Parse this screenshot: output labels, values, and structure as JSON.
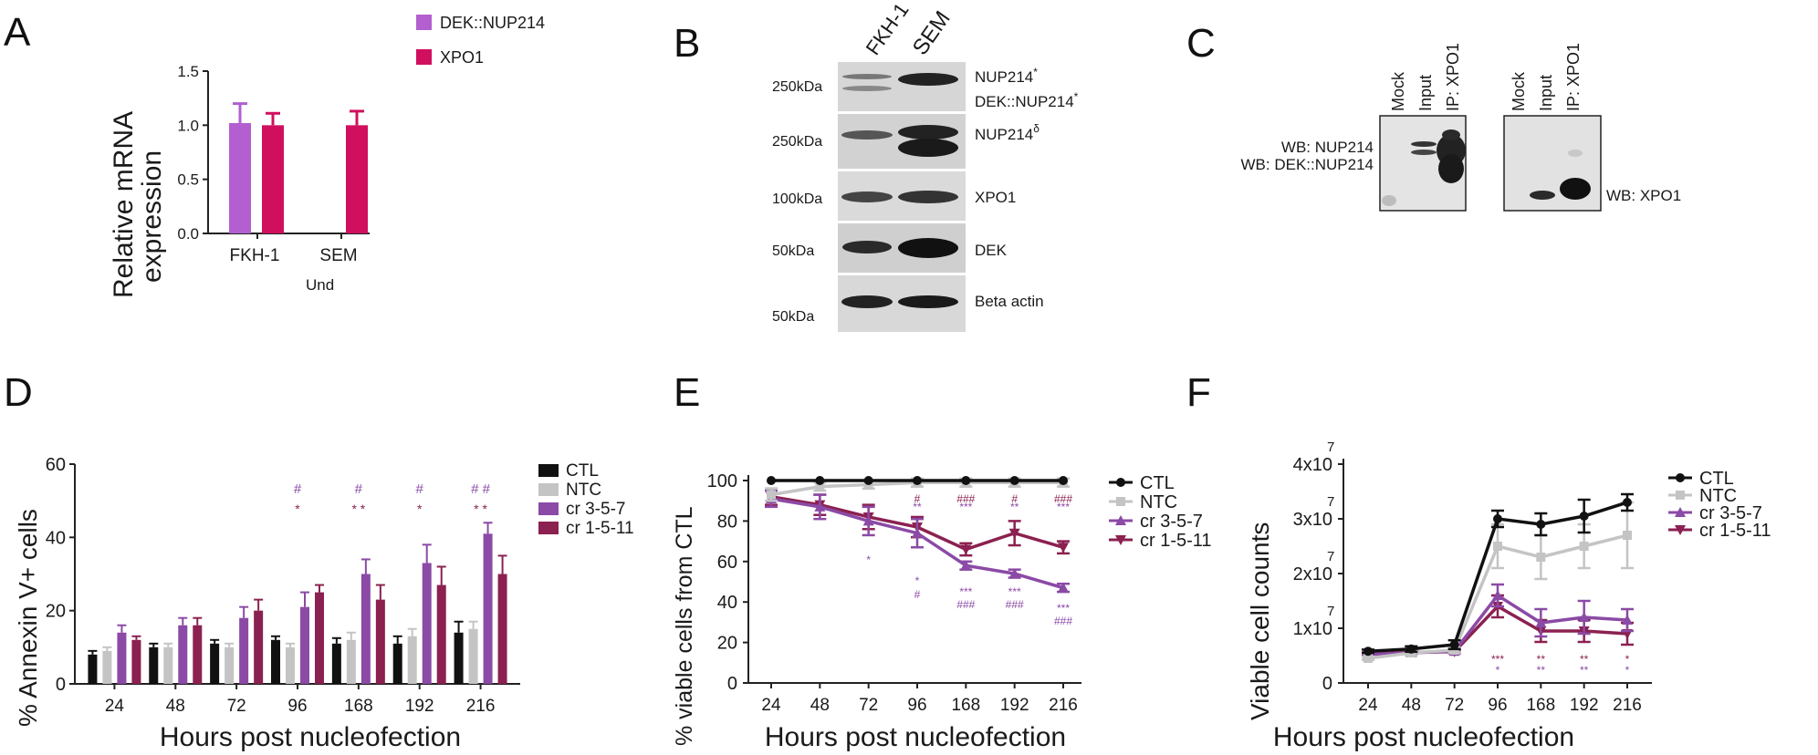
{
  "panels": {
    "A": {
      "letter": "A"
    },
    "B": {
      "letter": "B"
    },
    "C": {
      "letter": "C"
    },
    "D": {
      "letter": "D"
    },
    "E": {
      "letter": "E"
    },
    "F": {
      "letter": "F"
    }
  },
  "blot_B": {
    "lanes": [
      "FKH-1",
      "SEM"
    ],
    "rows": [
      {
        "size": "250kDa",
        "labels": [
          "NUP214",
          "DEK::NUP214"
        ],
        "sup": [
          "*",
          "*"
        ]
      },
      {
        "size": "250kDa",
        "labels": [
          "NUP214"
        ],
        "sup": [
          "δ"
        ]
      },
      {
        "size": "100kDa",
        "labels": [
          "XPO1"
        ]
      },
      {
        "size": "50kDa",
        "labels": [
          "DEK"
        ]
      },
      {
        "size": "50kDa",
        "labels": [
          "Beta actin"
        ]
      }
    ]
  },
  "blot_C": {
    "lanes_left": [
      "Mock",
      "Input",
      "IP: XPO1"
    ],
    "lanes_right": [
      "Mock",
      "Input",
      "IP: XPO1"
    ],
    "left_labels": [
      "WB: NUP214",
      "WB: DEK::NUP214"
    ],
    "right_label": "WB: XPO1"
  },
  "chart_data": [
    {
      "id": "A",
      "type": "bar",
      "ylabel": "Relative mRNA expression",
      "ylabel_lines": [
        "Relative mRNA",
        "expression"
      ],
      "categories": [
        "FKH-1",
        "SEM"
      ],
      "ylim": [
        0,
        1.5
      ],
      "yticks": [
        "0.0",
        "0.5",
        "1.0",
        "1.5"
      ],
      "series": [
        {
          "name": "DEK::NUP214",
          "color": "#b35fd0",
          "values": [
            1.02,
            0
          ],
          "errors": [
            0.18,
            0
          ]
        },
        {
          "name": "XPO1",
          "color": "#d0105e",
          "values": [
            1.0,
            1.0
          ],
          "errors": [
            0.11,
            0.13
          ]
        }
      ],
      "annotations": [
        {
          "category": "SEM",
          "text": "Und"
        }
      ]
    },
    {
      "id": "D",
      "type": "bar",
      "ylabel": "% Annexin V+ cells",
      "xlabel": "Hours post nucleofection",
      "categories": [
        "24",
        "48",
        "72",
        "96",
        "168",
        "192",
        "216"
      ],
      "ylim": [
        0,
        60
      ],
      "yticks": [
        "0",
        "20",
        "40",
        "60"
      ],
      "series": [
        {
          "name": "CTL",
          "color": "#111111",
          "values": [
            8,
            10,
            11,
            12,
            11,
            11,
            14
          ],
          "errors": [
            1,
            1,
            1,
            1,
            1.5,
            2,
            3
          ]
        },
        {
          "name": "NTC",
          "color": "#c4c4c4",
          "values": [
            9,
            10,
            10,
            10,
            12,
            13,
            15
          ],
          "errors": [
            1,
            1,
            1,
            1,
            2,
            2,
            2
          ]
        },
        {
          "name": "cr 3-5-7",
          "color": "#8b4aa6",
          "values": [
            14,
            16,
            18,
            21,
            30,
            33,
            41
          ],
          "errors": [
            2,
            2,
            3,
            4,
            4,
            5,
            3
          ]
        },
        {
          "name": "cr 1-5-11",
          "color": "#8b2150",
          "values": [
            12,
            16,
            20,
            25,
            23,
            27,
            30
          ],
          "errors": [
            1,
            2,
            3,
            2,
            4,
            5,
            5
          ]
        }
      ],
      "annotations": [
        {
          "category": "96",
          "lines": [
            "#",
            "*"
          ]
        },
        {
          "category": "168",
          "lines": [
            "#",
            "* *"
          ]
        },
        {
          "category": "192",
          "lines": [
            "#",
            "*"
          ]
        },
        {
          "category": "216",
          "lines": [
            "# #",
            "* *"
          ]
        }
      ]
    },
    {
      "id": "E",
      "type": "line",
      "ylabel": "% viable cells from CTL",
      "xlabel": "Hours post nucleofection",
      "categories": [
        "24",
        "48",
        "72",
        "96",
        "168",
        "192",
        "216"
      ],
      "ylim": [
        0,
        100
      ],
      "yticks": [
        "0",
        "20",
        "40",
        "60",
        "80",
        "100"
      ],
      "series": [
        {
          "name": "CTL",
          "color": "#111111",
          "marker": "circle",
          "values": [
            100,
            100,
            100,
            100,
            100,
            100,
            100
          ],
          "errors": [
            0,
            0,
            0,
            0,
            0,
            0,
            0
          ]
        },
        {
          "name": "NTC",
          "color": "#c4c4c4",
          "marker": "square",
          "values": [
            93,
            97,
            98,
            99,
            99,
            99,
            99
          ],
          "errors": [
            3,
            2,
            2,
            2,
            2,
            2,
            2
          ]
        },
        {
          "name": "cr 3-5-7",
          "color": "#8b4aa6",
          "marker": "triangle-up",
          "values": [
            91,
            87,
            80,
            74,
            58,
            54,
            47
          ],
          "errors": [
            4,
            6,
            7,
            7,
            2,
            2,
            2
          ]
        },
        {
          "name": "cr 1-5-11",
          "color": "#8b2150",
          "marker": "triangle-down",
          "values": [
            92,
            88,
            82,
            77,
            66,
            74,
            67
          ],
          "errors": [
            4,
            5,
            6,
            5,
            3,
            6,
            3
          ]
        }
      ],
      "annotations_top": [
        {
          "category": "96",
          "lines": [
            "#",
            "**"
          ]
        },
        {
          "category": "168",
          "lines": [
            "###",
            "***"
          ]
        },
        {
          "category": "192",
          "lines": [
            "#",
            "**"
          ]
        },
        {
          "category": "216",
          "lines": [
            "###",
            "***"
          ]
        }
      ],
      "annotations_bottom": [
        {
          "category": "72",
          "lines": [
            "*"
          ]
        },
        {
          "category": "96",
          "lines": [
            "*",
            "#"
          ]
        },
        {
          "category": "168",
          "lines": [
            "***",
            "###"
          ]
        },
        {
          "category": "192",
          "lines": [
            "***",
            "###"
          ]
        },
        {
          "category": "216",
          "lines": [
            "***",
            "###"
          ]
        }
      ]
    },
    {
      "id": "F",
      "type": "line",
      "ylabel": "Viable cell counts",
      "xlabel": "Hours post nucleofection",
      "categories": [
        "24",
        "48",
        "72",
        "96",
        "168",
        "192",
        "216"
      ],
      "ylim": [
        0,
        40000000
      ],
      "yticks": [
        0,
        10000000,
        20000000,
        30000000,
        40000000
      ],
      "ytick_labels": [
        "0",
        "1x10",
        "2x10",
        "3x10",
        "4x10"
      ],
      "ytick_exp": "7",
      "series": [
        {
          "name": "CTL",
          "color": "#111111",
          "marker": "circle",
          "values": [
            5800000,
            6200000,
            7000000,
            30000000,
            29000000,
            30500000,
            33000000
          ],
          "errors": [
            300000,
            500000,
            800000,
            1500000,
            2000000,
            3000000,
            1500000
          ]
        },
        {
          "name": "NTC",
          "color": "#c4c4c4",
          "marker": "square",
          "values": [
            4500000,
            5500000,
            6000000,
            25000000,
            23000000,
            25000000,
            27000000
          ],
          "errors": [
            300000,
            500000,
            500000,
            4000000,
            4000000,
            4000000,
            6000000
          ]
        },
        {
          "name": "cr 3-5-7",
          "color": "#8b4aa6",
          "marker": "triangle-up",
          "values": [
            5200000,
            5500000,
            5800000,
            16000000,
            11000000,
            12000000,
            11500000
          ],
          "errors": [
            300000,
            300000,
            300000,
            2000000,
            2500000,
            3000000,
            2000000
          ]
        },
        {
          "name": "cr 1-5-11",
          "color": "#8b2150",
          "marker": "triangle-down",
          "values": [
            5300000,
            5600000,
            5700000,
            14000000,
            9500000,
            9500000,
            9000000
          ],
          "errors": [
            300000,
            300000,
            300000,
            2000000,
            2000000,
            2000000,
            2000000
          ]
        }
      ],
      "annotations": [
        {
          "category": "96",
          "lines": [
            "***",
            "*"
          ]
        },
        {
          "category": "168",
          "lines": [
            "**",
            "**"
          ]
        },
        {
          "category": "192",
          "lines": [
            "**",
            "**"
          ]
        },
        {
          "category": "216",
          "lines": [
            "*",
            "*"
          ]
        }
      ]
    }
  ]
}
